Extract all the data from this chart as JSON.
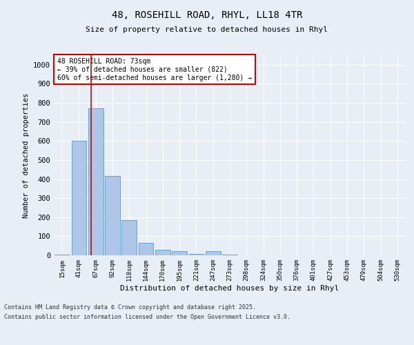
{
  "title_line1": "48, ROSEHILL ROAD, RHYL, LL18 4TR",
  "title_line2": "Size of property relative to detached houses in Rhyl",
  "xlabel": "Distribution of detached houses by size in Rhyl",
  "ylabel": "Number of detached properties",
  "bar_labels": [
    "15sqm",
    "41sqm",
    "67sqm",
    "92sqm",
    "118sqm",
    "144sqm",
    "170sqm",
    "195sqm",
    "221sqm",
    "247sqm",
    "273sqm",
    "298sqm",
    "324sqm",
    "350sqm",
    "376sqm",
    "401sqm",
    "427sqm",
    "453sqm",
    "479sqm",
    "504sqm",
    "530sqm"
  ],
  "bar_values": [
    5,
    600,
    770,
    415,
    185,
    65,
    30,
    20,
    8,
    20,
    5,
    0,
    0,
    0,
    0,
    0,
    0,
    0,
    0,
    0,
    0
  ],
  "bar_color": "#aec6e8",
  "bar_edge_color": "#5a96c8",
  "background_color": "#e8eef5",
  "grid_color": "#ffffff",
  "vline_x_index": 1.72,
  "vline_color": "#cc0000",
  "annotation_text": "48 ROSEHILL ROAD: 73sqm\n← 39% of detached houses are smaller (822)\n60% of semi-detached houses are larger (1,280) →",
  "annotation_box_color": "#ffffff",
  "annotation_box_edge_color": "#cc0000",
  "ylim": [
    0,
    1050
  ],
  "yticks": [
    0,
    100,
    200,
    300,
    400,
    500,
    600,
    700,
    800,
    900,
    1000
  ],
  "footer_line1": "Contains HM Land Registry data © Crown copyright and database right 2025.",
  "footer_line2": "Contains public sector information licensed under the Open Government Licence v3.0.",
  "figsize": [
    6.0,
    5.0
  ],
  "dpi": 100
}
